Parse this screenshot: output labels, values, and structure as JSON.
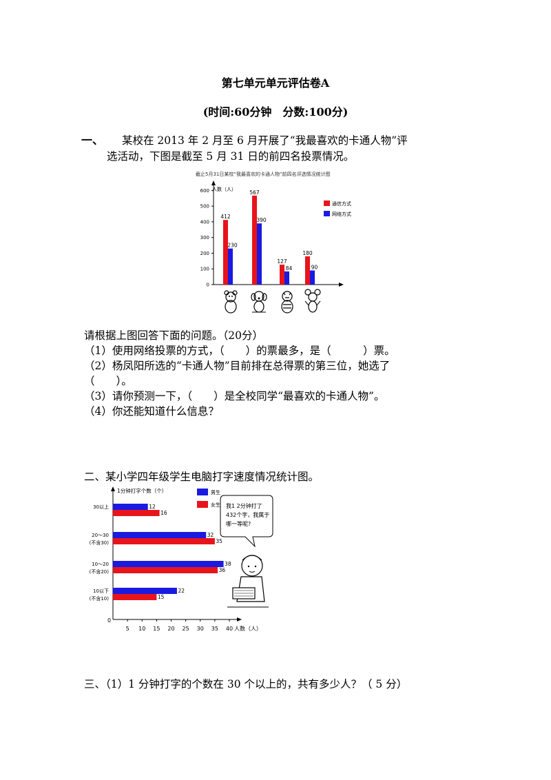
{
  "header": {
    "title": "第七单元单元评估卷A",
    "subtitle": "(时间:60分钟　分数:100分)"
  },
  "section1": {
    "num": "一、",
    "intro_line1": "某校在 2013 年 2 月至 6 月开展了“我最喜欢的卡通人物”评",
    "intro_line2": "选活动，下图是截至 5 月 31 日的前四名投票情况。",
    "prompt": "请根据上图回答下面的问题。（20分）",
    "q1": "（1）使用网络投票的方式，（　　）的票最多，是（　　　）票。",
    "q2a": "（2）杨凤阳所选的“卡通人物”目前排在总得票的第三位，她选了",
    "q2b": "（　　）。",
    "q3": "（3）请你预测一下，（　　）是全校同学“最喜欢的卡通人物”。",
    "q4": "（4）你还能知道什么信息？"
  },
  "section2": {
    "heading": "二、某小学四年级学生电脑打字速度情况统计图。"
  },
  "section3": {
    "question": "三、（1）1 分钟打字的个数在 30 个以上的，共有多少人？（ 5 分）"
  },
  "colors": {
    "red": "#e8141c",
    "blue": "#1a1ae0"
  },
  "chart_data": [
    {
      "type": "bar",
      "title": "截止5月31日某校“我最喜欢的卡通人物”前四名评选情况统计图",
      "ylabel": "人数（人）",
      "yticks": [
        "0",
        "100",
        "200",
        "300",
        "400",
        "500",
        "600"
      ],
      "ylim": [
        0,
        650
      ],
      "categories": [
        "bear-icon",
        "dog-icon",
        "tiger-icon",
        "mouse-icon"
      ],
      "series": [
        {
          "name": "通信方式",
          "color": "#e8141c",
          "values": [
            412,
            567,
            127,
            180
          ]
        },
        {
          "name": "网络方式",
          "color": "#1a1ae0",
          "values": [
            230,
            390,
            84,
            90
          ]
        }
      ],
      "legend": "top-right"
    },
    {
      "type": "bar",
      "orientation": "horizontal",
      "ylabel": "1分钟打字个数（个）",
      "xlabel": "人数（人）",
      "xticks": [
        "5",
        "10",
        "15",
        "20",
        "25",
        "30",
        "35",
        "40"
      ],
      "zero_label": "0",
      "xlim": [
        0,
        40
      ],
      "categories": [
        {
          "line1": "30以上",
          "line2": ""
        },
        {
          "line1": "20～30",
          "line2": "(不含30)"
        },
        {
          "line1": "10～20",
          "line2": "(不含20)"
        },
        {
          "line1": "10以下",
          "line2": "(不含10)"
        }
      ],
      "series": [
        {
          "name": "男生",
          "color": "#1a1ae0",
          "values": [
            12,
            32,
            38,
            22
          ]
        },
        {
          "name": "女生",
          "color": "#e8141c",
          "values": [
            16,
            35,
            36,
            15
          ]
        }
      ],
      "legend": "top-right",
      "speech_bubble": [
        "我1 2分钟打了",
        "432个字，我属于",
        "哪一等呢?"
      ]
    }
  ]
}
